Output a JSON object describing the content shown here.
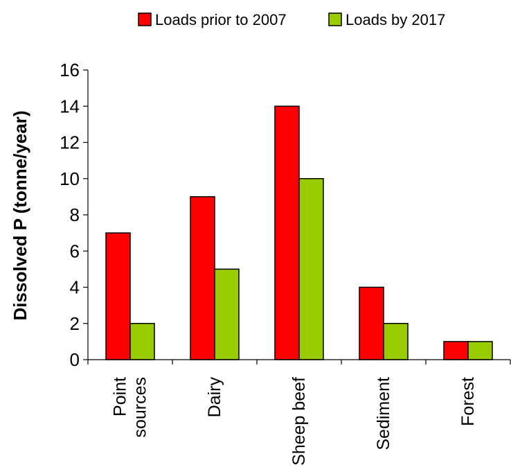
{
  "chart_data": {
    "type": "bar",
    "ylabel": "Dissolved P (tonne/year)",
    "xlabel": "",
    "categories": [
      [
        "Point",
        "sources"
      ],
      [
        "Dairy"
      ],
      [
        "Sheep beef"
      ],
      [
        "Sediment"
      ],
      [
        "Forest"
      ]
    ],
    "series": [
      {
        "name": "Loads prior to 2007",
        "values": [
          7,
          9,
          14,
          4,
          1
        ],
        "color": "#ff0000"
      },
      {
        "name": "Loads by 2017",
        "values": [
          2,
          5,
          10,
          2,
          1
        ],
        "color": "#99cc00"
      }
    ],
    "ylim": [
      0,
      16
    ],
    "yticks": [
      0,
      2,
      4,
      6,
      8,
      10,
      12,
      14,
      16
    ],
    "grid": false,
    "legend": "top"
  }
}
